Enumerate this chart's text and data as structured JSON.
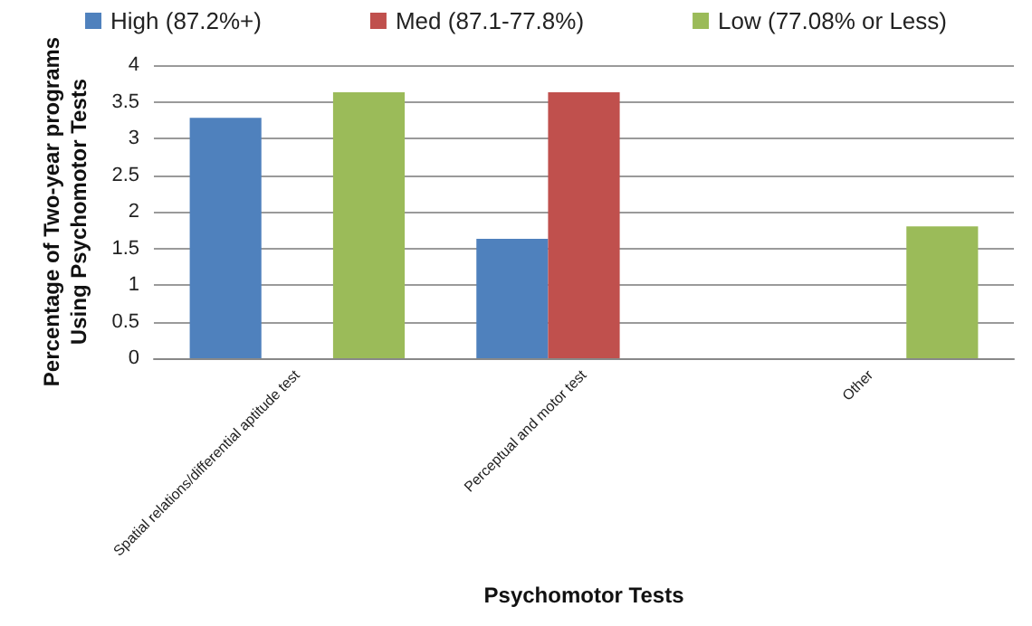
{
  "chart_data": {
    "type": "bar",
    "xlabel": "Psychomotor Tests",
    "ylabel": "Percentage of Two-year programs\nUsing Psychomotor Tests",
    "categories": [
      "Spatial relations/differential aptitude test",
      "Perceptual and motor test",
      "Other"
    ],
    "series": [
      {
        "name": "High (87.2%+)",
        "color": "#4f81bd",
        "values": [
          3.28,
          1.63,
          null
        ]
      },
      {
        "name": "Med (87.1-77.8%)",
        "color": "#c0504d",
        "values": [
          null,
          3.63,
          null
        ]
      },
      {
        "name": "Low (77.08% or Less)",
        "color": "#9bbb59",
        "values": [
          3.63,
          null,
          1.8
        ]
      }
    ],
    "ylim": [
      0,
      4
    ],
    "yticks": [
      0,
      0.5,
      1,
      1.5,
      2,
      2.5,
      3,
      3.5,
      4
    ],
    "grid": "y",
    "legend": "top"
  }
}
